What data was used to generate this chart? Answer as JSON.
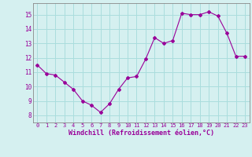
{
  "x": [
    0,
    1,
    2,
    3,
    4,
    5,
    6,
    7,
    8,
    9,
    10,
    11,
    12,
    13,
    14,
    15,
    16,
    17,
    18,
    19,
    20,
    21,
    22,
    23
  ],
  "y": [
    11.5,
    10.9,
    10.8,
    10.3,
    9.8,
    9.0,
    8.7,
    8.2,
    8.8,
    9.8,
    10.6,
    10.7,
    11.9,
    13.4,
    13.0,
    13.2,
    15.1,
    15.0,
    15.0,
    15.2,
    14.9,
    13.7,
    12.1,
    12.1
  ],
  "line_color": "#990099",
  "marker": "D",
  "marker_size": 2,
  "bg_color": "#d5f0f0",
  "grid_color": "#aadddd",
  "xlabel": "Windchill (Refroidissement éolien,°C)",
  "xlabel_color": "#990099",
  "tick_color": "#990099",
  "spine_color": "#888888",
  "ylim": [
    7.5,
    15.8
  ],
  "yticks": [
    8,
    9,
    10,
    11,
    12,
    13,
    14,
    15
  ],
  "xticks": [
    0,
    1,
    2,
    3,
    4,
    5,
    6,
    7,
    8,
    9,
    10,
    11,
    12,
    13,
    14,
    15,
    16,
    17,
    18,
    19,
    20,
    21,
    22,
    23
  ]
}
